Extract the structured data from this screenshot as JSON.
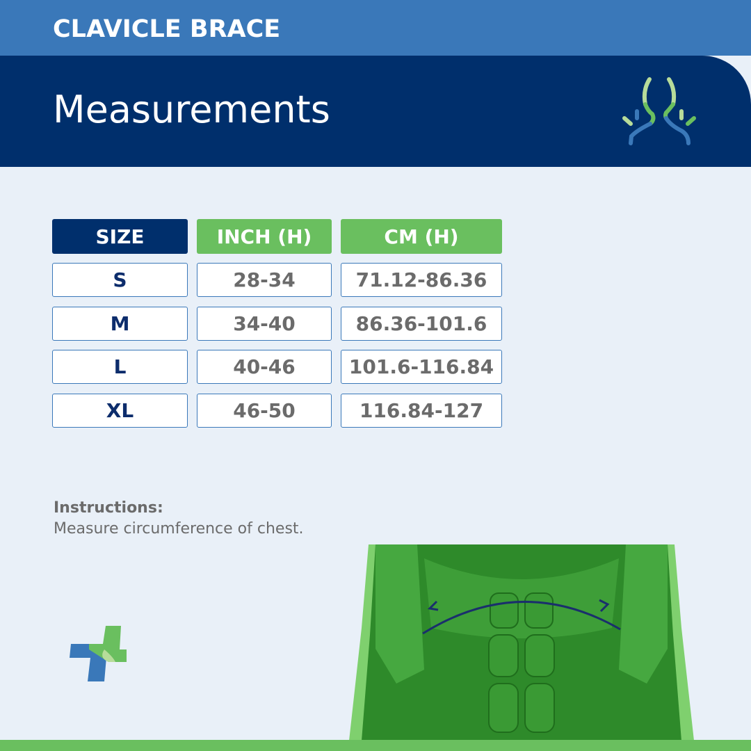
{
  "header": {
    "brand": "CLAVICLE BRACE",
    "title": "Measurements"
  },
  "table": {
    "columns": [
      "SIZE",
      "INCH (H)",
      "CM (H)"
    ],
    "rows": [
      [
        "S",
        "28-34",
        "71.12-86.36"
      ],
      [
        "M",
        "34-40",
        "86.36-101.6"
      ],
      [
        "L",
        "40-46",
        "101.6-116.84"
      ],
      [
        "XL",
        "46-50",
        "116.84-127"
      ]
    ]
  },
  "instructions": {
    "label": "Instructions:",
    "text": "Measure circumference of chest."
  },
  "colors": {
    "navy": "#002f6c",
    "blue": "#3a78b9",
    "green": "#6abf5f",
    "background": "#e9f0f8"
  },
  "icons": {
    "header": "neck-shoulder-pain-icon",
    "logo": "medical-cross-logo",
    "illustration": "chest-muscles-measurement"
  }
}
